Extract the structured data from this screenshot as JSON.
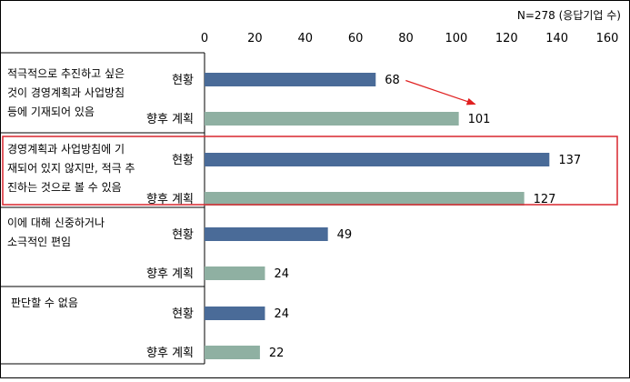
{
  "chart_data": {
    "type": "bar",
    "orientation": "horizontal",
    "note": "N=278 (응답기업 수)",
    "xlim": [
      0,
      160
    ],
    "xticks": [
      0,
      20,
      40,
      60,
      80,
      100,
      120,
      140,
      160
    ],
    "groups": [
      {
        "label_lines": [
          "적극적으로 추진하고 싶은",
          "것이 경영계획과 사업방침",
          "등에 기재되어 있음"
        ],
        "bars": [
          {
            "name": "현황",
            "value": 68
          },
          {
            "name": "향후 계획",
            "value": 101
          }
        ]
      },
      {
        "label_lines": [
          "경영계획과 사업방침에 기",
          "재되어 있지 않지만, 적극 추",
          "진하는 것으로 볼 수 있음"
        ],
        "bars": [
          {
            "name": "현황",
            "value": 137
          },
          {
            "name": "향후 계획",
            "value": 127
          }
        ]
      },
      {
        "label_lines": [
          "이에 대해 신중하거나",
          "소극적인 편임"
        ],
        "bars": [
          {
            "name": "현황",
            "value": 49
          },
          {
            "name": "향후 계획",
            "value": 24
          }
        ]
      },
      {
        "label_lines": [
          "판단할 수 없음"
        ],
        "bars": [
          {
            "name": "현황",
            "value": 24
          },
          {
            "name": "향후 계획",
            "value": 22
          }
        ]
      }
    ],
    "colors": {
      "현황": "#4a6b98",
      "향후 계획": "#8fb0a2",
      "highlight": "#d9272e",
      "arrow": "#e02020"
    },
    "highlight_group": 1,
    "annotation_arrow": {
      "from": {
        "group": 0,
        "bar": 0
      },
      "to": {
        "group": 0,
        "bar": 1
      }
    }
  }
}
